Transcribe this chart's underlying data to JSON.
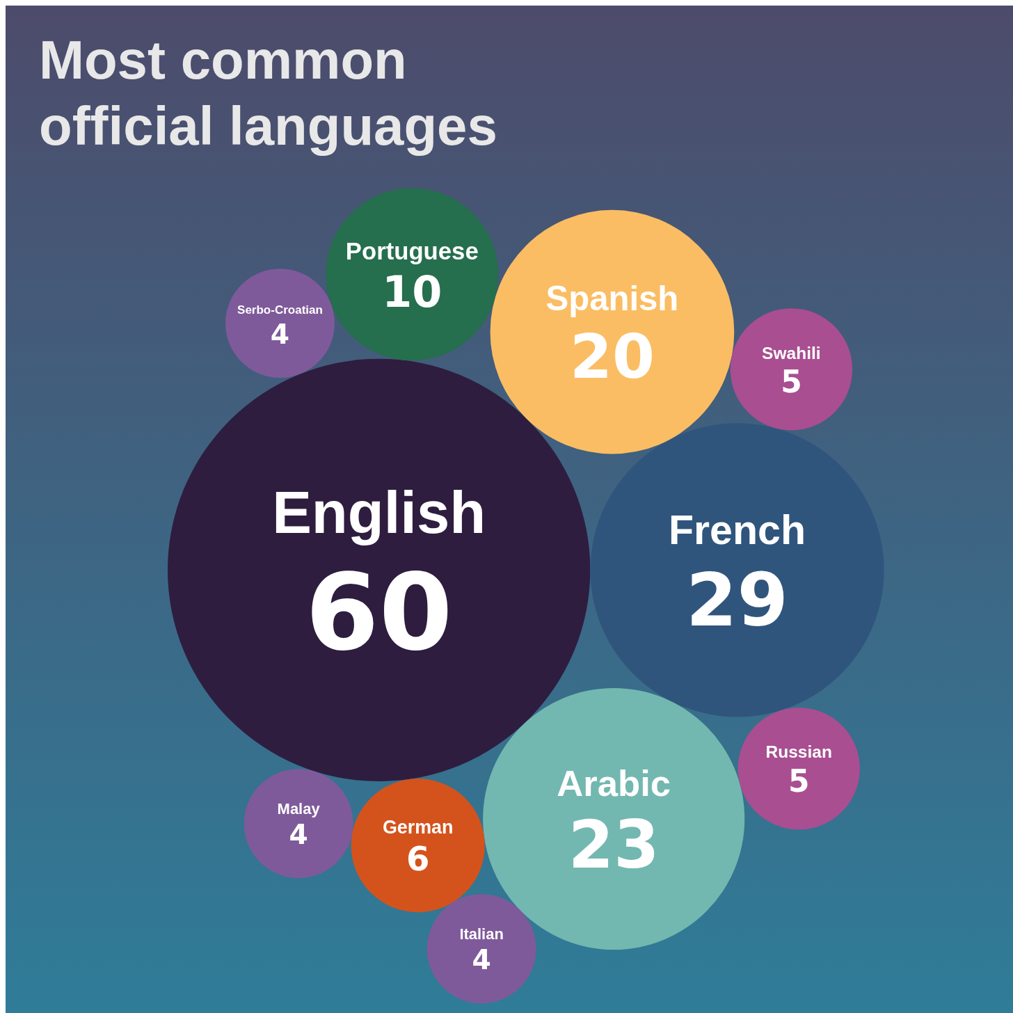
{
  "chart_data": {
    "type": "other",
    "title": "Most common official languages",
    "categories": [
      "English",
      "French",
      "Arabic",
      "Spanish",
      "Portuguese",
      "German",
      "Swahili",
      "Russian",
      "Malay",
      "Serbo-Croatian",
      "Italian"
    ],
    "values": [
      60,
      29,
      23,
      20,
      10,
      6,
      5,
      5,
      4,
      4,
      4
    ],
    "colors": [
      "#2e1d3f",
      "#30557d",
      "#72b8b0",
      "#fbbd63",
      "#256e4e",
      "#d4531d",
      "#a94e91",
      "#a94e91",
      "#7f5a9a",
      "#7f5a9a",
      "#7f5a9a"
    ],
    "data_labels": true
  }
}
